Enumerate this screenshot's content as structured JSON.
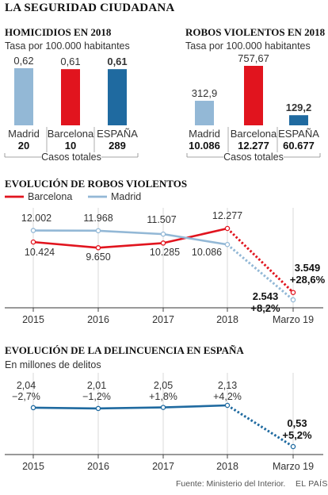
{
  "title": "LA SEGURIDAD CIUDADANA",
  "colors": {
    "red": "#e1141e",
    "light_blue": "#93b8d6",
    "dark_blue": "#1f6aa0",
    "grid": "#cfcfcf",
    "text": "#333333"
  },
  "chart_data": [
    {
      "type": "bar",
      "title": "HOMICIDIOS EN 2018",
      "subtitle": "Tasa por 100.000 habitantes",
      "categories": [
        "Madrid",
        "Barcelona",
        "ESPAÑA"
      ],
      "values": [
        0.62,
        0.61,
        0.61
      ],
      "value_labels": [
        "0,62",
        "0,61",
        "0,61"
      ],
      "totals": [
        "20",
        "10",
        "289"
      ],
      "totals_label": "Casos totales",
      "bar_colors": [
        "#93b8d6",
        "#e1141e",
        "#1f6aa0"
      ],
      "ylim": [
        0,
        0.62
      ]
    },
    {
      "type": "bar",
      "title": "ROBOS VIOLENTOS EN 2018",
      "subtitle": "Tasa por 100.000 habitantes",
      "categories": [
        "Madrid",
        "Barcelona",
        "ESPAÑA"
      ],
      "values": [
        312.9,
        757.67,
        129.2
      ],
      "value_labels": [
        "312,9",
        "757,67",
        "129,2"
      ],
      "totals": [
        "10.086",
        "12.277",
        "60.677"
      ],
      "totals_label": "Casos totales",
      "bar_colors": [
        "#93b8d6",
        "#e1141e",
        "#1f6aa0"
      ],
      "ylim": [
        0,
        757.67
      ]
    },
    {
      "type": "line",
      "title": "EVOLUCIÓN DE ROBOS VIOLENTOS",
      "categories": [
        "2015",
        "2016",
        "2017",
        "2018",
        "Marzo 19"
      ],
      "grid": true,
      "legend": "top-left",
      "series": [
        {
          "name": "Barcelona",
          "color": "#e1141e",
          "values": [
            10424,
            9650,
            10285,
            12277,
            3549
          ],
          "labels": [
            "10.424",
            "9.650",
            "10.285",
            "12.277",
            "3.549"
          ],
          "last_change": "+28,6%"
        },
        {
          "name": "Madrid",
          "color": "#93b8d6",
          "values": [
            12002,
            11968,
            11507,
            10086,
            2543
          ],
          "labels": [
            "12.002",
            "11.968",
            "11.507",
            "10.086",
            "2.543"
          ],
          "last_change": "+8,2%"
        }
      ]
    },
    {
      "type": "line",
      "title": "EVOLUCIÓN DE LA DELINCUENCIA EN ESPAÑA",
      "subtitle": "En millones de delitos",
      "categories": [
        "2015",
        "2016",
        "2017",
        "2018",
        "Marzo 19"
      ],
      "grid": true,
      "series": [
        {
          "color": "#1f6aa0",
          "values": [
            2.04,
            2.01,
            2.05,
            2.13,
            0.53
          ],
          "labels": [
            "2,04",
            "2,01",
            "2,05",
            "2,13",
            "0,53"
          ],
          "changes": [
            "−2,7%",
            "−1,2%",
            "+1,8%",
            "+4,2%",
            "+5,2%"
          ]
        }
      ]
    }
  ],
  "footer": {
    "source": "Fuente: Ministerio del Interior.",
    "brand": "EL PAÍS"
  }
}
